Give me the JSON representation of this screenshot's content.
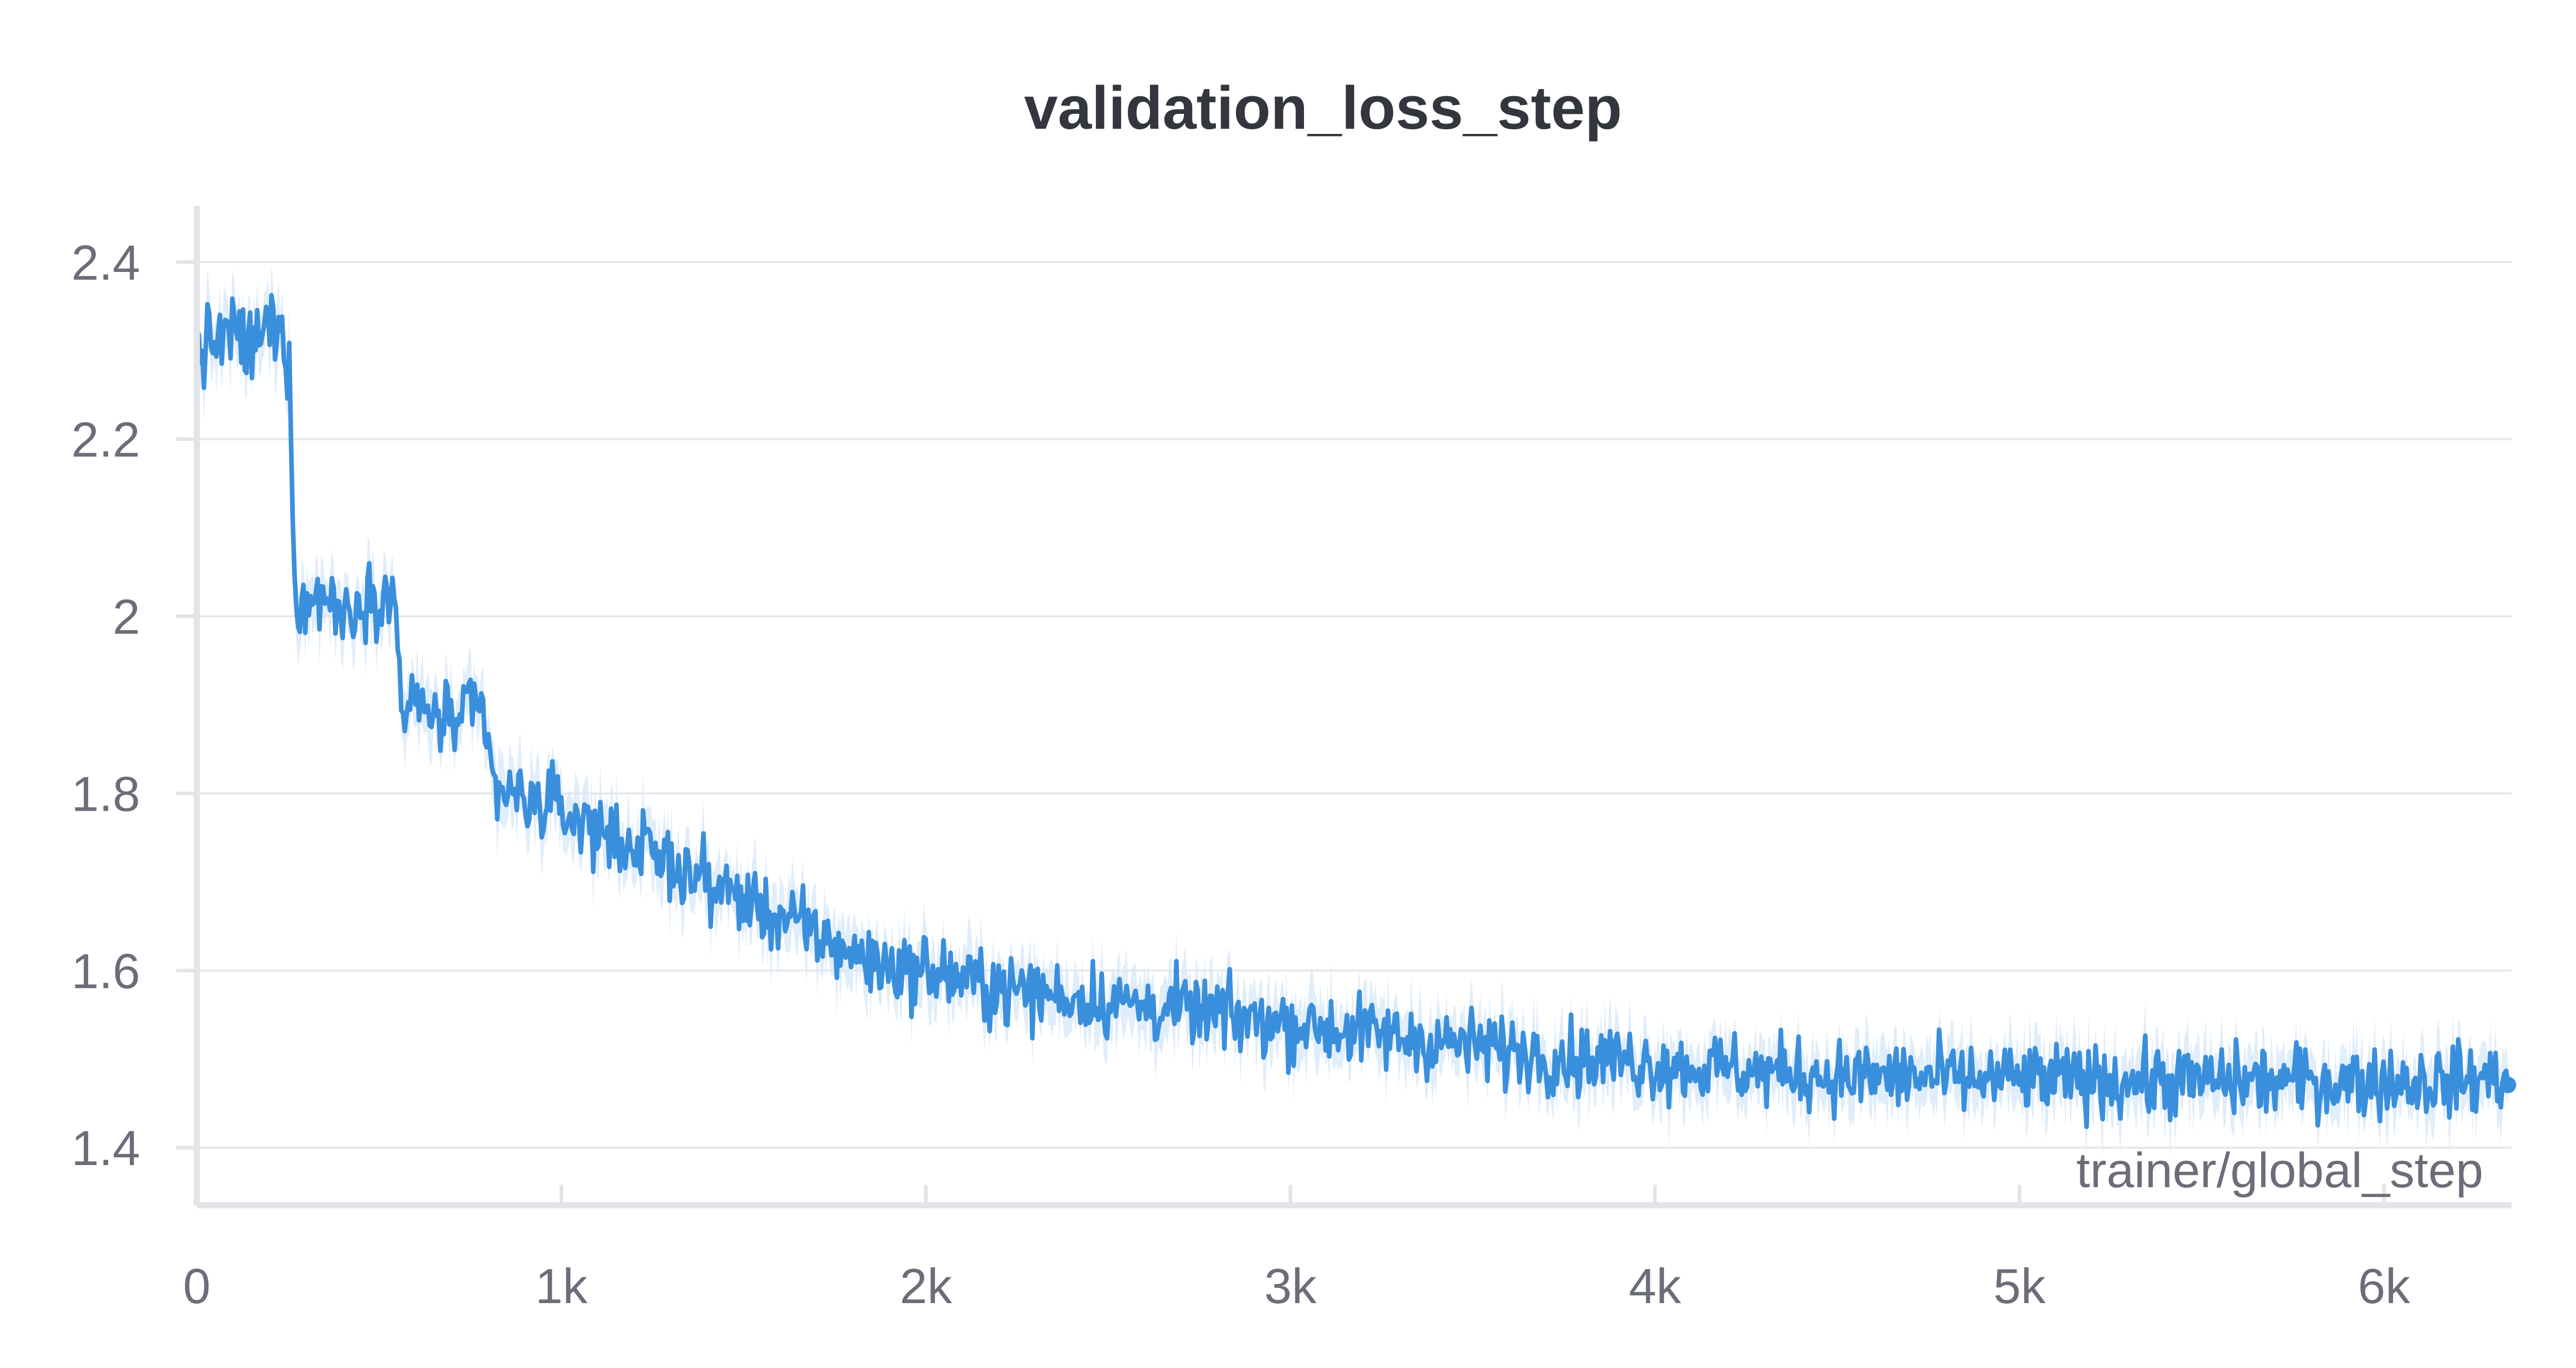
{
  "chart_data": {
    "type": "line",
    "title": "validation_loss_step",
    "xlabel": "trainer/global_step",
    "ylabel": "",
    "xlim": [
      0,
      6350
    ],
    "ylim": [
      1.335,
      2.44
    ],
    "grid": true,
    "legend": "none",
    "x_ticks": [
      {
        "value": 0,
        "label": "0"
      },
      {
        "value": 1000,
        "label": "1k"
      },
      {
        "value": 2000,
        "label": "2k"
      },
      {
        "value": 3000,
        "label": "3k"
      },
      {
        "value": 4000,
        "label": "4k"
      },
      {
        "value": 5000,
        "label": "5k"
      },
      {
        "value": 6000,
        "label": "6k"
      }
    ],
    "y_ticks": [
      {
        "value": 1.4,
        "label": "1.4"
      },
      {
        "value": 1.6,
        "label": "1.6"
      },
      {
        "value": 1.8,
        "label": "1.8"
      },
      {
        "value": 2.0,
        "label": "2"
      },
      {
        "value": 2.2,
        "label": "2.2"
      },
      {
        "value": 2.4,
        "label": "2.4"
      }
    ],
    "colors": {
      "line": "#3a8fdc",
      "band": "#d6e7f8",
      "grid": "#e6e7ea",
      "axis": "#e3e4e7",
      "tick_text": "#6b6e78",
      "title": "#33363d"
    },
    "series": [
      {
        "x": [
          0,
          50,
          100,
          150,
          200,
          230,
          250,
          260,
          270,
          300,
          350,
          400,
          450,
          500,
          530,
          550,
          560,
          580,
          600,
          650,
          700,
          750,
          780,
          800,
          820,
          850,
          900,
          950,
          1000,
          1050,
          1100,
          1150,
          1200,
          1250,
          1300,
          1350,
          1400,
          1450,
          1500,
          1550,
          1600,
          1650,
          1700,
          1750,
          1800,
          1850,
          1900,
          1950,
          2000,
          2100,
          2200,
          2300,
          2400,
          2500,
          2600,
          2700,
          2800,
          2900,
          3000,
          3100,
          3200,
          3300,
          3400,
          3500,
          3600,
          3700,
          3800,
          3900,
          4000,
          4100,
          4200,
          4300,
          4400,
          4500,
          4600,
          4700,
          4800,
          4900,
          5000,
          5100,
          5200,
          5300,
          5400,
          5500,
          5600,
          5700,
          5800,
          5900,
          6000,
          6100,
          6200,
          6300,
          6340
        ],
        "values": [
          2.3,
          2.31,
          2.32,
          2.3,
          2.33,
          2.32,
          2.3,
          2.2,
          2.02,
          2.01,
          2.03,
          2.0,
          2.02,
          2.03,
          2.02,
          2.0,
          1.9,
          1.89,
          1.9,
          1.89,
          1.88,
          1.89,
          1.89,
          1.85,
          1.8,
          1.8,
          1.79,
          1.79,
          1.78,
          1.77,
          1.76,
          1.75,
          1.74,
          1.73,
          1.72,
          1.71,
          1.7,
          1.69,
          1.68,
          1.67,
          1.66,
          1.65,
          1.64,
          1.63,
          1.62,
          1.61,
          1.605,
          1.6,
          1.6,
          1.59,
          1.58,
          1.575,
          1.57,
          1.565,
          1.56,
          1.555,
          1.55,
          1.545,
          1.54,
          1.535,
          1.53,
          1.525,
          1.52,
          1.515,
          1.51,
          1.505,
          1.5,
          1.5,
          1.495,
          1.49,
          1.49,
          1.485,
          1.485,
          1.48,
          1.48,
          1.48,
          1.478,
          1.477,
          1.477,
          1.476,
          1.476,
          1.476,
          1.475,
          1.475,
          1.475,
          1.475,
          1.475,
          1.475,
          1.475,
          1.475,
          1.475,
          1.48,
          1.483
        ],
        "noise_amplitude": 0.04,
        "band_width": 0.03,
        "samples": 1300
      }
    ]
  }
}
